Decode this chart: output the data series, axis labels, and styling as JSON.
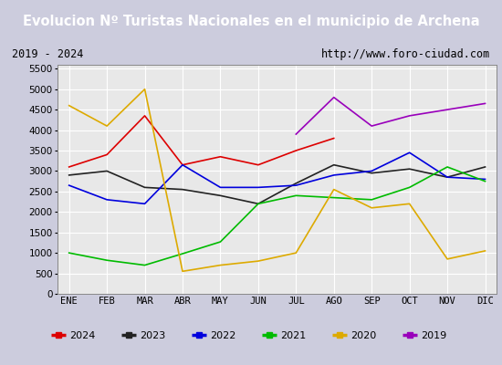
{
  "title": "Evolucion Nº Turistas Nacionales en el municipio de Archena",
  "subtitle_left": "2019 - 2024",
  "subtitle_right": "http://www.foro-ciudad.com",
  "months": [
    "ENE",
    "FEB",
    "MAR",
    "ABR",
    "MAY",
    "JUN",
    "JUL",
    "AGO",
    "SEP",
    "OCT",
    "NOV",
    "DIC"
  ],
  "series": {
    "2024": {
      "values": [
        3100,
        3400,
        4350,
        3150,
        3350,
        3150,
        3500,
        3800,
        null,
        null,
        null,
        null
      ],
      "color": "#dd0000"
    },
    "2023": {
      "values": [
        2900,
        3000,
        2600,
        2550,
        2400,
        2200,
        2700,
        3150,
        2950,
        3050,
        2850,
        3100
      ],
      "color": "#222222"
    },
    "2022": {
      "values": [
        2650,
        2300,
        2200,
        3150,
        2600,
        2600,
        2650,
        2900,
        3000,
        3450,
        2850,
        2800
      ],
      "color": "#0000dd"
    },
    "2021": {
      "values": [
        1000,
        820,
        700,
        980,
        1270,
        2200,
        2400,
        2350,
        2300,
        2600,
        3100,
        2750
      ],
      "color": "#00bb00"
    },
    "2020": {
      "values": [
        4600,
        4100,
        5000,
        550,
        700,
        800,
        1000,
        2550,
        2100,
        2200,
        850,
        1050
      ],
      "color": "#ddaa00"
    },
    "2019": {
      "values": [
        null,
        null,
        null,
        null,
        null,
        null,
        3900,
        4800,
        4100,
        4350,
        4500,
        4650
      ],
      "color": "#9900bb"
    }
  },
  "ylim": [
    0,
    5600
  ],
  "yticks": [
    0,
    500,
    1000,
    1500,
    2000,
    2500,
    3000,
    3500,
    4000,
    4500,
    5000,
    5500
  ],
  "title_bg": "#4477cc",
  "title_color": "#ffffff",
  "subtitle_bg": "#eeeeee",
  "plot_bg": "#e8e8e8",
  "grid_color": "#ffffff",
  "outer_bg": "#ccccdd",
  "legend_order": [
    "2024",
    "2023",
    "2022",
    "2021",
    "2020",
    "2019"
  ],
  "linewidth": 1.2
}
